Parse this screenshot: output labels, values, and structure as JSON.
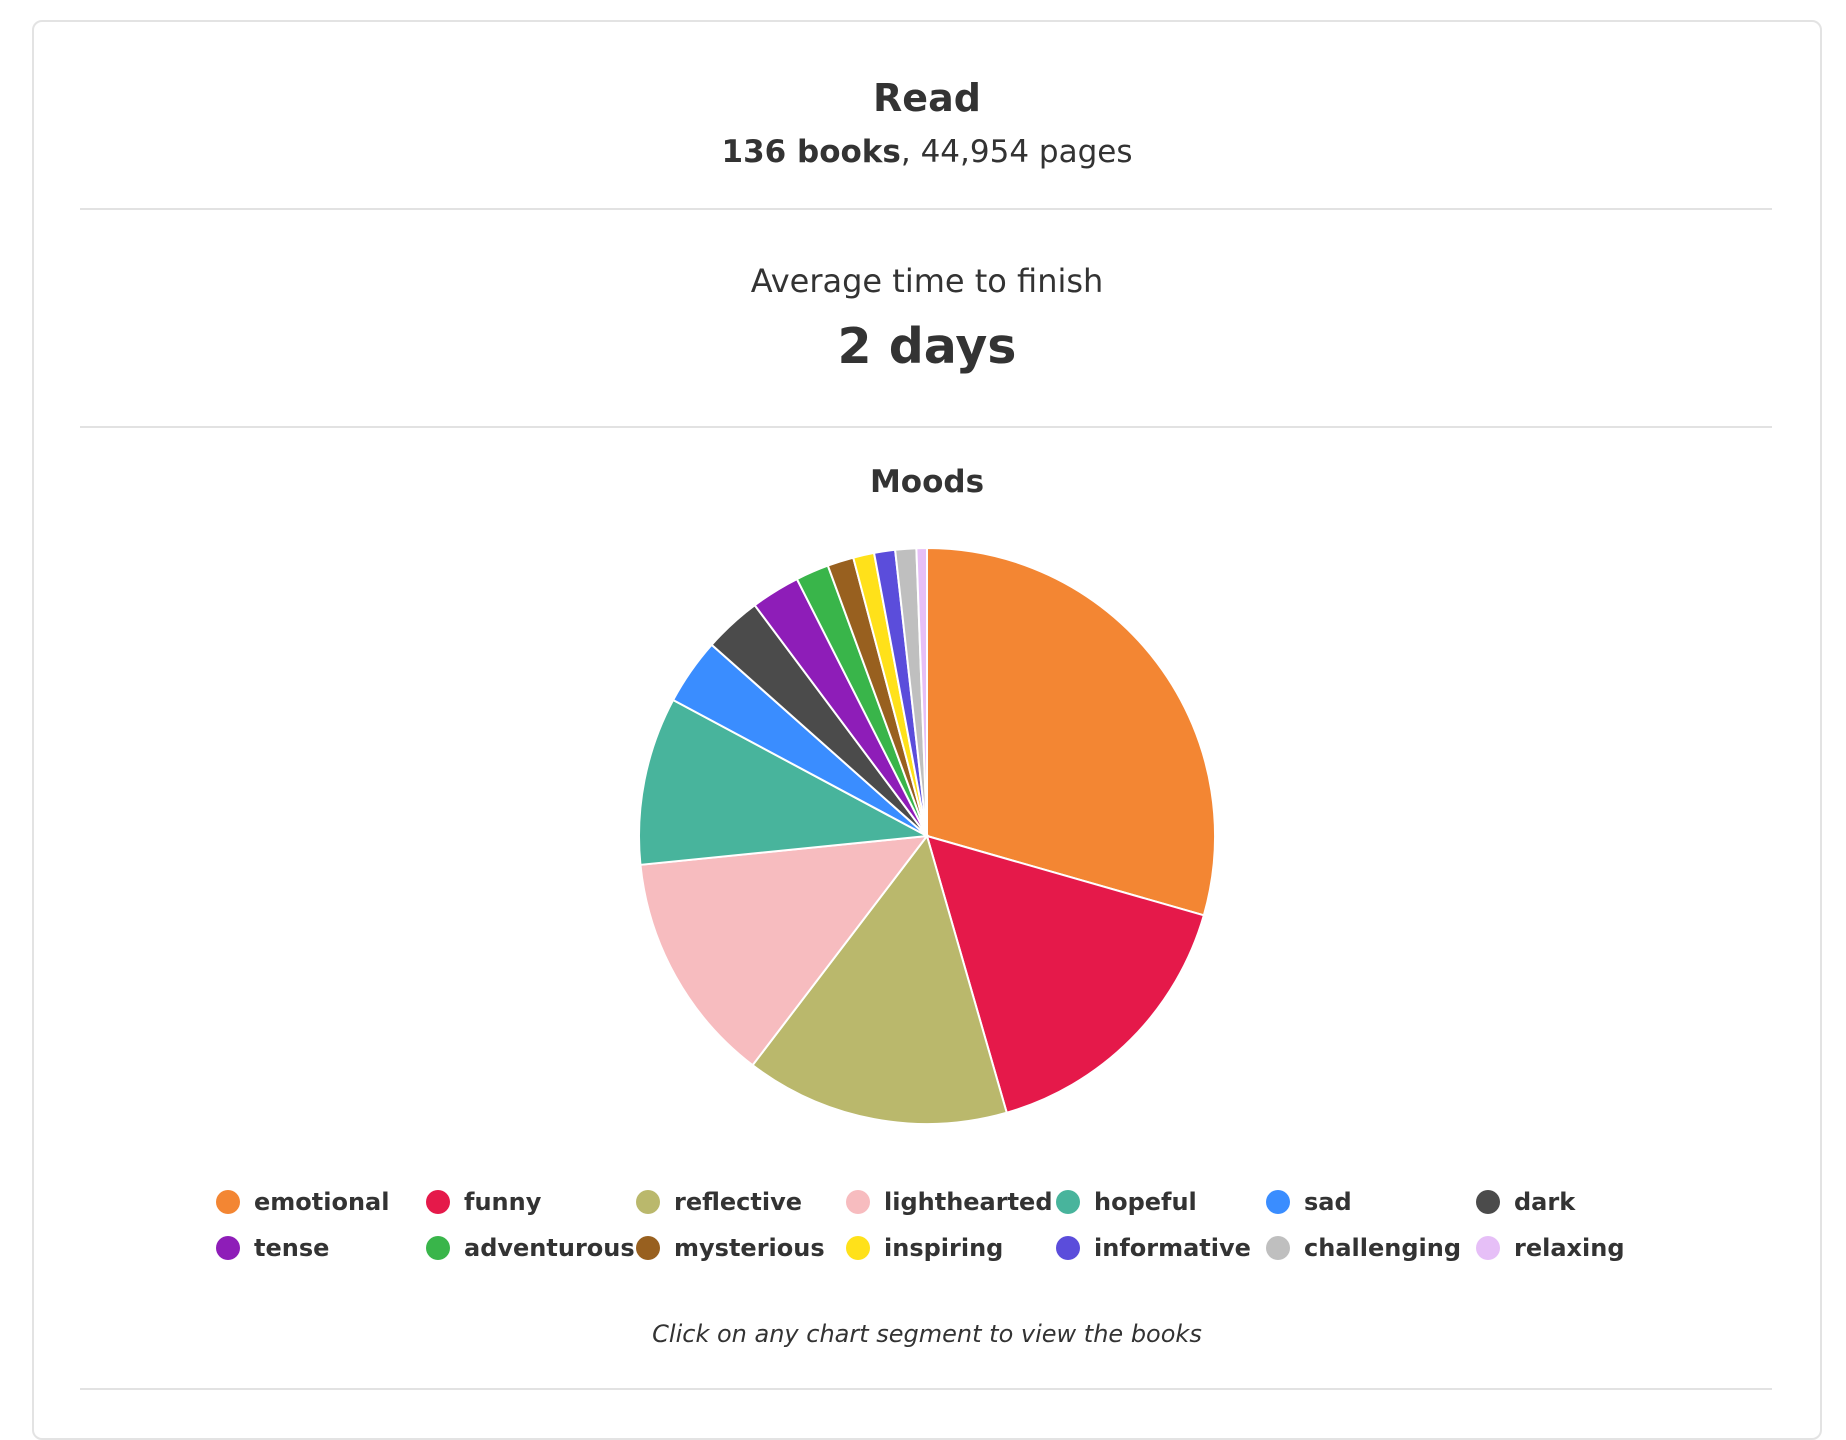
{
  "summary": {
    "read_title": "Read",
    "books_count": "136 books",
    "pages_sep": ",",
    "pages_text": "44,954 pages"
  },
  "average": {
    "label": "Average time to finish",
    "value": "2 days"
  },
  "hint": "Click on any chart segment to view the books",
  "chart_data": {
    "type": "pie",
    "title": "Moods",
    "legend_position": "bottom",
    "unit": "percent",
    "series": [
      {
        "name": "emotional",
        "value": 30.0,
        "color": "#F38633"
      },
      {
        "name": "funny",
        "value": 16.4,
        "color": "#E5194A"
      },
      {
        "name": "reflective",
        "value": 15.1,
        "color": "#BAB86C"
      },
      {
        "name": "lighthearted",
        "value": 13.3,
        "color": "#F7BCBF"
      },
      {
        "name": "hopeful",
        "value": 9.6,
        "color": "#48B49C"
      },
      {
        "name": "sad",
        "value": 3.8,
        "color": "#3A8DFF"
      },
      {
        "name": "dark",
        "value": 3.3,
        "color": "#4B4B4B"
      },
      {
        "name": "tense",
        "value": 2.8,
        "color": "#8E1DB8"
      },
      {
        "name": "adventurous",
        "value": 1.9,
        "color": "#39B54A"
      },
      {
        "name": "mysterious",
        "value": 1.5,
        "color": "#98601F"
      },
      {
        "name": "inspiring",
        "value": 1.2,
        "color": "#FFE11A"
      },
      {
        "name": "informative",
        "value": 1.2,
        "color": "#5B4DDB"
      },
      {
        "name": "challenging",
        "value": 1.2,
        "color": "#BFBFBF"
      },
      {
        "name": "relaxing",
        "value": 0.6,
        "color": "#E6BFF7"
      }
    ]
  }
}
